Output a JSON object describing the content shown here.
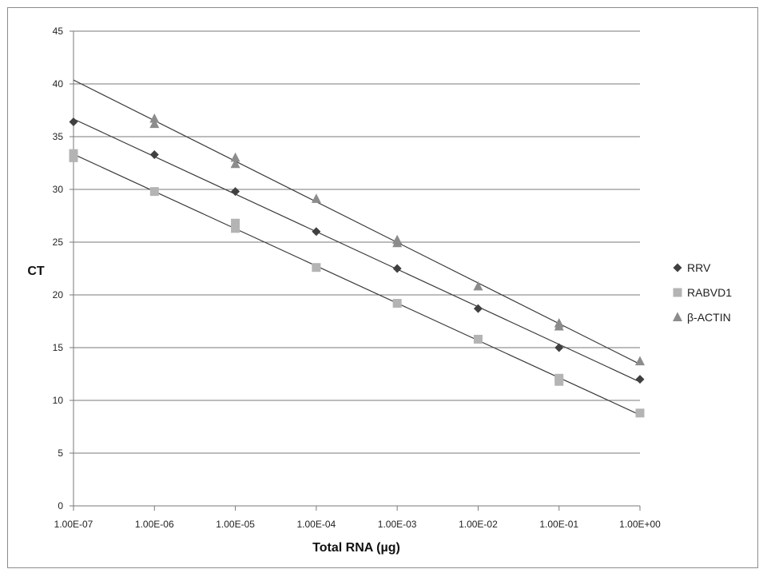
{
  "chart_data": {
    "type": "scatter",
    "title": "",
    "xlabel": "Total RNA (µg)",
    "ylabel": "CT",
    "x_scale": "log",
    "x_ticks": [
      "1.00E-07",
      "1.00E-06",
      "1.00E-05",
      "1.00E-04",
      "1.00E-03",
      "1.00E-02",
      "1.00E-01",
      "1.00E+00"
    ],
    "x_values": [
      1e-07,
      1e-06,
      1e-05,
      0.0001,
      0.001,
      0.01,
      0.1,
      1
    ],
    "ylim": [
      0,
      45
    ],
    "y_ticks": [
      "0",
      "5",
      "10",
      "15",
      "20",
      "25",
      "30",
      "35",
      "40",
      "45"
    ],
    "y_tick_values": [
      0,
      5,
      10,
      15,
      20,
      25,
      30,
      35,
      40,
      45
    ],
    "grid": true,
    "legend_position": "right",
    "trendlines": true,
    "series": [
      {
        "name": "RRV",
        "marker": "diamond",
        "color": "#404040",
        "x": [
          1e-07,
          1e-06,
          1e-05,
          0.0001,
          0.001,
          0.01,
          0.1,
          1
        ],
        "y": [
          36.4,
          33.3,
          29.8,
          26.0,
          22.5,
          18.7,
          15.0,
          12.0
        ]
      },
      {
        "name": "RABVD1",
        "marker": "square",
        "color": "#b4b4b4",
        "x": [
          1e-07,
          1e-07,
          1e-06,
          1e-05,
          1e-05,
          0.0001,
          0.001,
          0.01,
          0.1,
          0.1,
          1
        ],
        "y": [
          33.4,
          33.0,
          29.8,
          26.8,
          26.3,
          22.6,
          19.2,
          15.8,
          12.1,
          11.8,
          8.8
        ]
      },
      {
        "name": "β-ACTIN",
        "marker": "triangle",
        "color": "#8c8c8c",
        "x": [
          1e-06,
          1e-06,
          1e-05,
          1e-05,
          0.0001,
          0.001,
          0.001,
          0.01,
          0.1,
          0.1,
          1
        ],
        "y": [
          36.7,
          36.2,
          33.0,
          32.4,
          29.1,
          25.2,
          24.9,
          20.8,
          17.3,
          17.0,
          13.7
        ]
      }
    ]
  }
}
